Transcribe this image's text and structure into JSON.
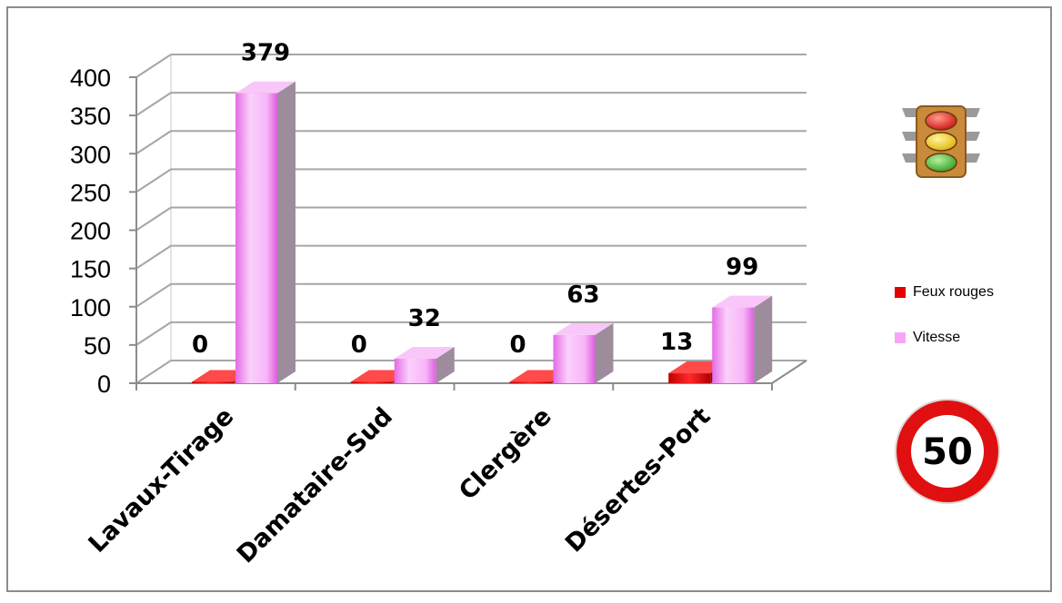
{
  "chart_data": {
    "type": "bar",
    "categories": [
      "Lavaux-Tirage",
      "Damataire-Sud",
      "Clergère",
      "Désertes-Port"
    ],
    "series": [
      {
        "name": "Feux rouges",
        "values": [
          0,
          0,
          0,
          13
        ]
      },
      {
        "name": "Vitesse",
        "values": [
          379,
          32,
          63,
          99
        ]
      }
    ],
    "title": "",
    "xlabel": "",
    "ylabel": "",
    "ylim": [
      0,
      400
    ],
    "yticks": [
      "0",
      "50",
      "100",
      "150",
      "200",
      "250",
      "300",
      "350",
      "400"
    ],
    "data_labels": [
      "0",
      "379",
      "0",
      "32",
      "0",
      "63",
      "13",
      "99"
    ],
    "grid": true,
    "legend": "right",
    "colors": {
      "Feux rouges": "#e00000",
      "Vitesse": "#f7a6f7"
    },
    "icons": [
      "traffic-light-icon",
      "speed-limit-50-icon"
    ],
    "speed_sign_text": "50"
  }
}
